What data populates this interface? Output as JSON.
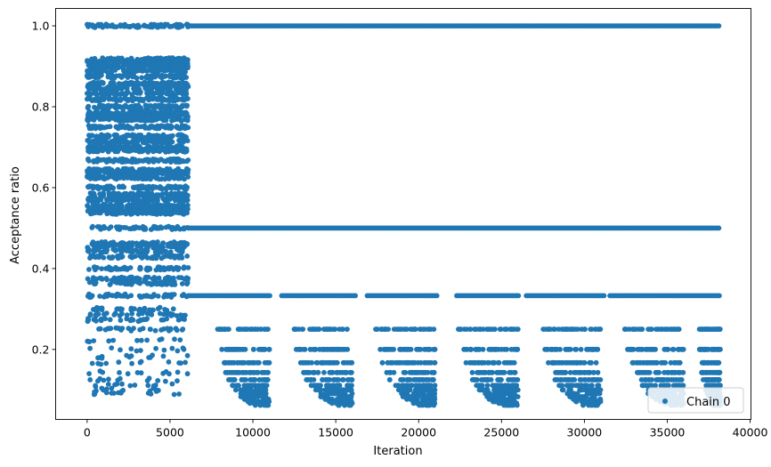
{
  "chart_data": {
    "type": "scatter",
    "xlabel": "Iteration",
    "ylabel": "Acceptance ratio",
    "xlim": [
      -1900,
      40050
    ],
    "ylim": [
      0.027,
      1.043
    ],
    "xticks": [
      0,
      5000,
      10000,
      15000,
      20000,
      25000,
      30000,
      35000,
      40000
    ],
    "yticks": [
      0.2,
      0.4,
      0.6,
      0.8,
      1.0
    ],
    "xtick_labels": [
      "0",
      "5000",
      "10000",
      "15000",
      "20000",
      "25000",
      "30000",
      "35000",
      "40000"
    ],
    "ytick_labels": [
      "0.2",
      "0.4",
      "0.6",
      "0.8",
      "1.0"
    ],
    "grid": false,
    "legend_position": "lower right",
    "series": [
      {
        "name": "Chain 0",
        "color": "#1f77b4",
        "marker": "circle",
        "x_range": [
          0,
          38200
        ],
        "burn_in_end": 6100,
        "burn_in_levels": [
          1.0,
          0.917,
          0.909,
          0.9,
          0.889,
          0.875,
          0.857,
          0.846,
          0.833,
          0.818,
          0.8,
          0.786,
          0.778,
          0.769,
          0.75,
          0.727,
          0.714,
          0.7,
          0.692,
          0.667,
          0.643,
          0.636,
          0.625,
          0.6,
          0.583,
          0.571,
          0.556,
          0.545,
          0.538,
          0.5,
          0.462,
          0.455,
          0.444,
          0.429,
          0.4,
          0.375,
          0.364,
          0.333,
          0.3,
          0.286,
          0.273,
          0.25,
          0.222,
          0.2,
          0.182,
          0.167,
          0.143,
          0.125,
          0.111,
          0.1,
          0.091
        ],
        "post_levels": [
          1.0,
          0.5,
          0.333,
          0.25,
          0.2,
          0.167,
          0.143,
          0.125,
          0.111,
          0.1,
          0.091,
          0.083,
          0.077,
          0.071,
          0.067,
          0.062
        ],
        "cluster_end_iterations": [
          11000,
          16000,
          21000,
          26000,
          31000,
          36000,
          38200
        ]
      }
    ]
  }
}
